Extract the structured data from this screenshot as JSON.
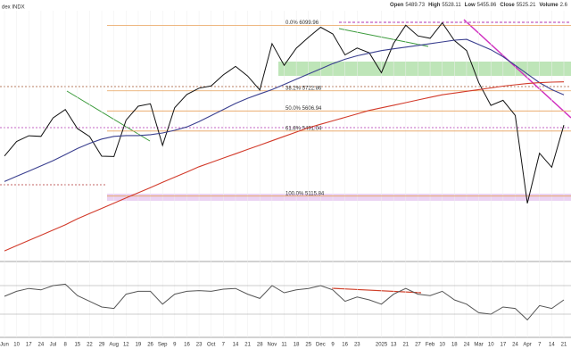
{
  "header": {
    "title": "dex INDX",
    "quote": [
      {
        "name": "Open",
        "value": 5489.73
      },
      {
        "name": "High",
        "value": 5528.11
      },
      {
        "name": "Low",
        "value": 5455.86
      },
      {
        "name": "Close",
        "value": 5525.21
      },
      {
        "name": "Volume",
        "value": 2.6
      }
    ]
  },
  "chart_data": [
    {
      "type": "line",
      "categories": [
        "Jun",
        "10",
        "17",
        "24",
        "Jul",
        "8",
        "15",
        "22",
        "29",
        "Aug",
        "12",
        "19",
        "26",
        "Sep",
        "9",
        "16",
        "23",
        "Oct",
        "7",
        "14",
        "21",
        "28",
        "Nov",
        "11",
        "18",
        "25",
        "Dec",
        "9",
        "16",
        "23",
        null,
        "2025",
        "13",
        "21",
        "27",
        "Feb",
        "10",
        "18",
        "24",
        "Mar",
        "10",
        "17",
        "24",
        "Apr",
        "7",
        "14",
        "21"
      ],
      "series": [
        {
          "color": "#111111",
          "values": [
            5347,
            5431,
            5464,
            5460,
            5567,
            5615,
            5505,
            5459,
            5346,
            5344,
            5554,
            5634,
            5648,
            5408,
            5626,
            5702,
            5738,
            5751,
            5815,
            5864,
            5808,
            5728,
            5995,
            5870,
            5969,
            6032,
            6090,
            6051,
            5930,
            5970,
            5942,
            5827,
            5997,
            6101,
            6040,
            6026,
            6115,
            6013,
            5955,
            5770,
            5639,
            5668,
            5581,
            5074,
            5363,
            5282,
            5525
          ]
        },
        {
          "color": "#3a3f8f",
          "values": [
            5200,
            5230,
            5260,
            5290,
            5320,
            5355,
            5390,
            5420,
            5445,
            5460,
            5465,
            5465,
            5470,
            5480,
            5495,
            5515,
            5545,
            5580,
            5615,
            5650,
            5680,
            5705,
            5730,
            5760,
            5790,
            5820,
            5850,
            5880,
            5905,
            5925,
            5940,
            5955,
            5965,
            5975,
            5985,
            5995,
            6005,
            6015,
            6020,
            5990,
            5960,
            5920,
            5870,
            5820,
            5770,
            5730,
            5700
          ]
        },
        {
          "color": "#d23a2a",
          "values": [
            4800,
            4830,
            4860,
            4890,
            4920,
            4950,
            4985,
            5015,
            5045,
            5075,
            5105,
            5135,
            5165,
            5195,
            5225,
            5255,
            5285,
            5310,
            5335,
            5360,
            5385,
            5410,
            5435,
            5460,
            5485,
            5510,
            5530,
            5550,
            5570,
            5590,
            5610,
            5625,
            5640,
            5655,
            5670,
            5685,
            5700,
            5710,
            5720,
            5730,
            5740,
            5750,
            5758,
            5765,
            5770,
            5773,
            5775
          ]
        }
      ],
      "ylim": [
        4754,
        6185
      ],
      "fib_levels": [
        {
          "value": 6099.96,
          "label": "0.0% 6099.96"
        },
        {
          "value": 5722.86,
          "label": "38.2% 5722.86"
        },
        {
          "value": 5606.94,
          "label": "50.0% 5606.94"
        },
        {
          "value": 5491.04,
          "label": "61.8% 5491.04"
        },
        {
          "value": 5115.84,
          "label": "100.0% 5115.84"
        }
      ],
      "fib_color": "#e8a05a"
    },
    {
      "type": "line",
      "series": [
        {
          "color": "#555555",
          "values": [
            55,
            62,
            66,
            64,
            70,
            72,
            56,
            48,
            40,
            38,
            58,
            62,
            62,
            44,
            58,
            62,
            63,
            62,
            65,
            66,
            58,
            52,
            70,
            60,
            64,
            66,
            70,
            64,
            48,
            54,
            50,
            44,
            58,
            66,
            58,
            56,
            62,
            50,
            44,
            32,
            30,
            40,
            38,
            22,
            42,
            38,
            50
          ]
        }
      ],
      "ylim": [
        0,
        100
      ],
      "levels": [
        70,
        30
      ]
    }
  ]
}
